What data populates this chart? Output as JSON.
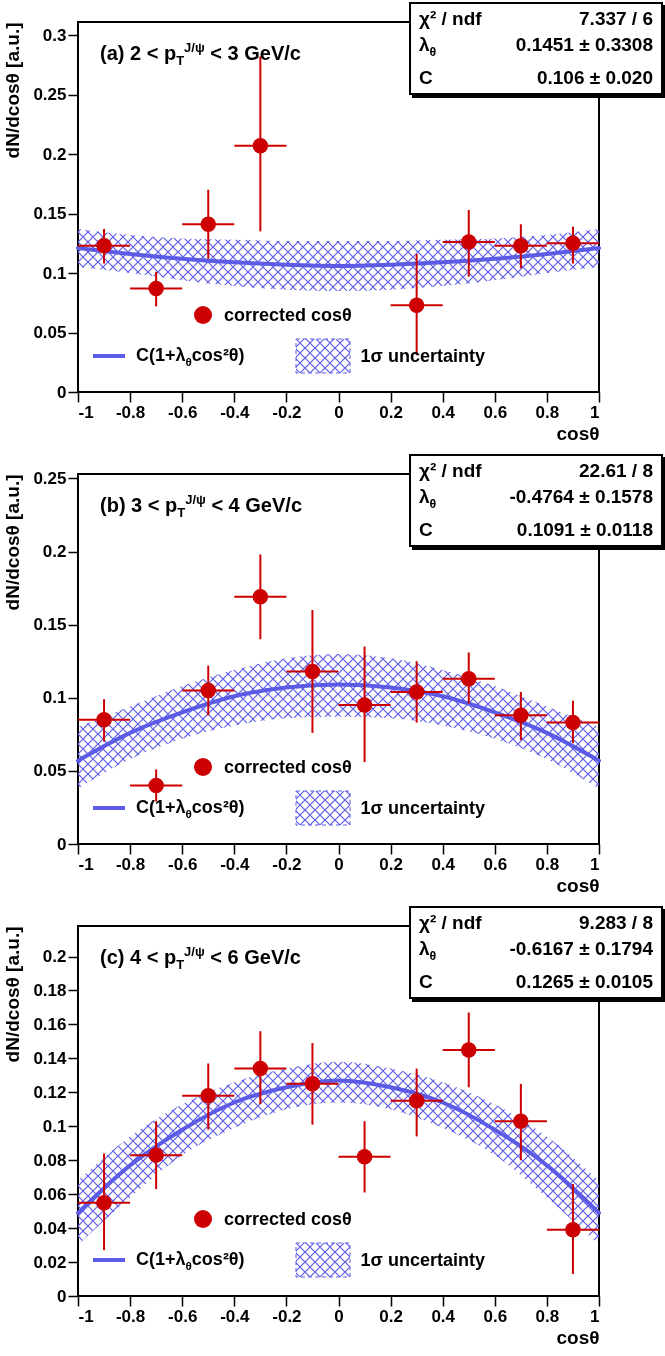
{
  "chart_data": [
    {
      "type": "scatter",
      "title": "(a)  2 < p$_{T}$$^{J/ψ}$ < 3 GeV/c",
      "xlabel": "cosθ",
      "ylabel": "dN/dcosθ [a.u.]",
      "xlim": [
        -1,
        1
      ],
      "ylim": [
        0,
        0.311
      ],
      "xticks": [
        -1,
        -0.8,
        -0.6,
        -0.4,
        -0.2,
        0,
        0.2,
        0.4,
        0.6,
        0.8,
        1
      ],
      "yticks": [
        0,
        0.05,
        0.1,
        0.15,
        0.2,
        0.25,
        0.3
      ],
      "legend": "bottom left",
      "annotations": [
        "χ² / ndf",
        "7.337 / 6",
        "λ$_{θ}$",
        "0.1451 ± 0.3308",
        "C",
        "0.106 ± 0.020",
        "1σ uncertainty"
      ],
      "series": [
        {
          "type": "line",
          "name": "C(1+λ$_{θ}$cos²θ)",
          "color": "#5b5be6",
          "x": [
            -1,
            -0.8,
            -0.6,
            -0.4,
            -0.2,
            0,
            0.2,
            0.4,
            0.6,
            0.8,
            1
          ],
          "values": [
            0.121,
            0.116,
            0.112,
            0.109,
            0.107,
            0.106,
            0.107,
            0.109,
            0.112,
            0.116,
            0.121
          ],
          "lower": [
            0.105,
            0.1,
            0.094,
            0.089,
            0.086,
            0.085,
            0.086,
            0.089,
            0.094,
            0.1,
            0.105
          ],
          "upper": [
            0.137,
            0.132,
            0.129,
            0.128,
            0.127,
            0.127,
            0.127,
            0.128,
            0.129,
            0.132,
            0.137
          ]
        },
        {
          "type": "scatter",
          "name": "corrected cosθ",
          "color": "#cc0000",
          "marker": "circle",
          "x": [
            -0.9,
            -0.7,
            -0.5,
            -0.3,
            0.3,
            0.5,
            0.7,
            0.9
          ],
          "values": [
            0.123,
            0.087,
            0.141,
            0.207,
            0.073,
            0.126,
            0.123,
            0.125
          ],
          "errors": [
            [
              0.108,
              0.137
            ],
            [
              0.072,
              0.101
            ],
            [
              0.112,
              0.17
            ],
            [
              0.135,
              0.282
            ],
            [
              0.031,
              0.116
            ],
            [
              0.097,
              0.153
            ],
            [
              0.104,
              0.141
            ],
            [
              0.108,
              0.139
            ]
          ],
          "xerrors": [
            0.1,
            0.1,
            0.1,
            0.1,
            0.1,
            0.1,
            0.1,
            0.1
          ]
        }
      ]
    },
    {
      "type": "scatter",
      "title": "(b)  3 < p$_{T}$$^{J/ψ}$ < 4 GeV/c",
      "xlabel": "cosθ",
      "ylabel": "dN/dcosθ [a.u.]",
      "xlim": [
        -1,
        1
      ],
      "ylim": [
        0,
        0.253
      ],
      "xticks": [
        -1,
        -0.8,
        -0.6,
        -0.4,
        -0.2,
        0,
        0.2,
        0.4,
        0.6,
        0.8,
        1
      ],
      "yticks": [
        0,
        0.05,
        0.1,
        0.15,
        0.2,
        0.25
      ],
      "legend": "bottom left",
      "annotations": [
        "χ² / ndf",
        "22.61 / 8",
        "λ$_{θ}$",
        "-0.4764 ± 0.1578",
        "C",
        "0.1091 ± 0.0118",
        "1σ uncertainty"
      ],
      "series": [
        {
          "type": "line",
          "name": "C(1+λ$_{θ}$cos²θ)",
          "color": "#5b5be6",
          "x": [
            -1,
            -0.8,
            -0.6,
            -0.4,
            -0.2,
            0,
            0.2,
            0.4,
            0.6,
            0.8,
            1
          ],
          "values": [
            0.057,
            0.076,
            0.09,
            0.101,
            0.107,
            0.109,
            0.107,
            0.101,
            0.09,
            0.076,
            0.057
          ],
          "lower": [
            0.038,
            0.058,
            0.072,
            0.081,
            0.086,
            0.087,
            0.086,
            0.081,
            0.072,
            0.058,
            0.038
          ],
          "upper": [
            0.08,
            0.094,
            0.108,
            0.119,
            0.127,
            0.13,
            0.127,
            0.119,
            0.108,
            0.094,
            0.08
          ]
        },
        {
          "type": "scatter",
          "name": "corrected cosθ",
          "color": "#cc0000",
          "marker": "circle",
          "x": [
            -0.9,
            -0.7,
            -0.5,
            -0.3,
            -0.1,
            0.1,
            0.3,
            0.5,
            0.7,
            0.9
          ],
          "values": [
            0.085,
            0.04,
            0.105,
            0.169,
            0.118,
            0.095,
            0.104,
            0.113,
            0.088,
            0.083
          ],
          "errors": [
            [
              0.07,
              0.099
            ],
            [
              0.029,
              0.051
            ],
            [
              0.088,
              0.122
            ],
            [
              0.14,
              0.198
            ],
            [
              0.076,
              0.16
            ],
            [
              0.056,
              0.135
            ],
            [
              0.083,
              0.125
            ],
            [
              0.096,
              0.131
            ],
            [
              0.071,
              0.104
            ],
            [
              0.069,
              0.098
            ]
          ],
          "xerrors": [
            0.1,
            0.1,
            0.1,
            0.1,
            0.1,
            0.1,
            0.1,
            0.1,
            0.1,
            0.1
          ]
        }
      ]
    },
    {
      "type": "scatter",
      "title": "(c) 4 < p$_{T}$$^{J/ψ}$ < 6 GeV/c",
      "xlabel": "cosθ",
      "ylabel": "dN/dcosθ [a.u.]",
      "xlim": [
        -1,
        1
      ],
      "ylim": [
        0,
        0.218
      ],
      "xticks": [
        -1,
        -0.8,
        -0.6,
        -0.4,
        -0.2,
        0,
        0.2,
        0.4,
        0.6,
        0.8,
        1
      ],
      "yticks": [
        0,
        0.02,
        0.04,
        0.06,
        0.08,
        0.1,
        0.12,
        0.14,
        0.16,
        0.18,
        0.2
      ],
      "legend": "bottom left",
      "annotations": [
        "χ² / ndf",
        "9.283 / 8",
        "λ$_{θ}$",
        "-0.6167 ± 0.1794",
        "C",
        "0.1265 ± 0.0105",
        "1σ uncertainty"
      ],
      "series": [
        {
          "type": "line",
          "name": "C(1+λ$_{θ}$cos²θ)",
          "color": "#5b5be6",
          "x": [
            -1,
            -0.8,
            -0.6,
            -0.4,
            -0.2,
            0,
            0.2,
            0.4,
            0.6,
            0.8,
            1
          ],
          "values": [
            0.049,
            0.077,
            0.098,
            0.114,
            0.123,
            0.127,
            0.123,
            0.114,
            0.098,
            0.077,
            0.049
          ],
          "lower": [
            0.03,
            0.058,
            0.083,
            0.099,
            0.11,
            0.114,
            0.11,
            0.099,
            0.083,
            0.058,
            0.03
          ],
          "upper": [
            0.068,
            0.094,
            0.113,
            0.126,
            0.134,
            0.138,
            0.134,
            0.126,
            0.113,
            0.094,
            0.068
          ]
        },
        {
          "type": "scatter",
          "name": "corrected cosθ",
          "color": "#cc0000",
          "marker": "circle",
          "x": [
            -0.9,
            -0.7,
            -0.5,
            -0.3,
            -0.1,
            0.1,
            0.3,
            0.5,
            0.7,
            0.9
          ],
          "values": [
            0.055,
            0.083,
            0.118,
            0.134,
            0.125,
            0.082,
            0.115,
            0.145,
            0.103,
            0.039
          ],
          "errors": [
            [
              0.027,
              0.084
            ],
            [
              0.063,
              0.103
            ],
            [
              0.098,
              0.137
            ],
            [
              0.113,
              0.156
            ],
            [
              0.101,
              0.149
            ],
            [
              0.061,
              0.103
            ],
            [
              0.094,
              0.134
            ],
            [
              0.123,
              0.167
            ],
            [
              0.08,
              0.125
            ],
            [
              0.013,
              0.066
            ]
          ],
          "xerrors": [
            0.1,
            0.1,
            0.1,
            0.1,
            0.1,
            0.1,
            0.1,
            0.1,
            0.1,
            0.1
          ]
        }
      ]
    }
  ]
}
